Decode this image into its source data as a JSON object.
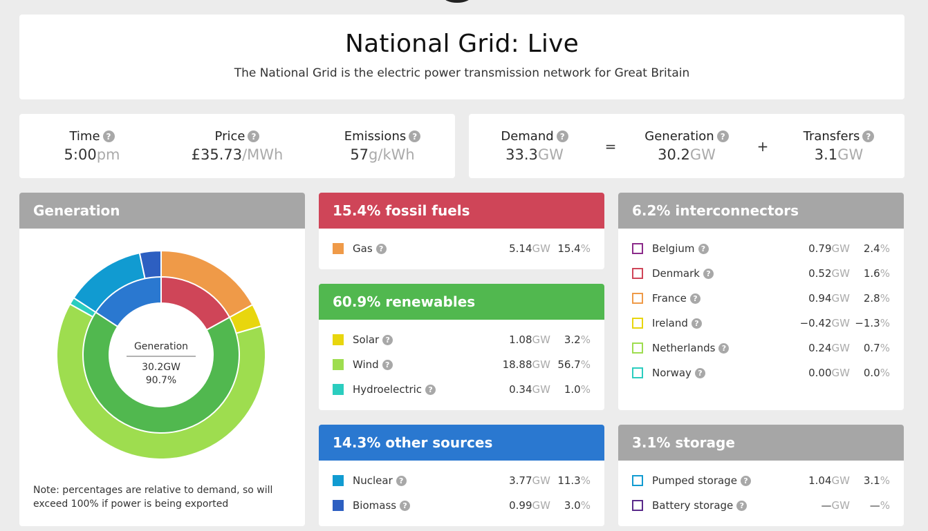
{
  "header": {
    "title": "National Grid: Live",
    "subtitle": "The National Grid is the electric power transmission network for Great Britain"
  },
  "stats": {
    "time": {
      "label": "Time",
      "value": "5:00",
      "unit": "pm"
    },
    "price": {
      "label": "Price",
      "value": "£35.73",
      "unit": "/MWh"
    },
    "emissions": {
      "label": "Emissions",
      "value": "57",
      "unit": "g/kWh"
    },
    "demand": {
      "label": "Demand",
      "value": "33.3",
      "unit": "GW"
    },
    "equals": "=",
    "generation": {
      "label": "Generation",
      "value": "30.2",
      "unit": "GW"
    },
    "plus": "+",
    "transfers": {
      "label": "Transfers",
      "value": "3.1",
      "unit": "GW"
    }
  },
  "help_glyph": "?",
  "gw_unit": "GW",
  "pct_unit": "%",
  "generation_panel": {
    "title": "Generation",
    "center_label": "Generation",
    "center_value": "30.2GW",
    "center_pct": "90.7%",
    "note": "Note: percentages are relative to demand, so will exceed 100% if power is being exported",
    "inner_ring": [
      {
        "name": "fossil fuels",
        "value": 15.4,
        "color": "#cf4558"
      },
      {
        "name": "renewables",
        "value": 60.9,
        "color": "#51b84f"
      },
      {
        "name": "other sources",
        "value": 14.3,
        "color": "#2a78d0"
      }
    ],
    "outer_ring": [
      {
        "name": "Gas",
        "value": 15.4,
        "color": "#ef9a48"
      },
      {
        "name": "Solar",
        "value": 3.2,
        "color": "#e8d60e"
      },
      {
        "name": "Wind",
        "value": 56.7,
        "color": "#9edd4f"
      },
      {
        "name": "Hydroelectric",
        "value": 1.0,
        "color": "#2bcdbf"
      },
      {
        "name": "Nuclear",
        "value": 11.3,
        "color": "#119bd1"
      },
      {
        "name": "Biomass",
        "value": 3.0,
        "color": "#2d5fc1"
      }
    ]
  },
  "fossil": {
    "title": "15.4% fossil fuels",
    "color": "#cf4558",
    "rows": [
      {
        "name": "Gas",
        "gw": "5.14",
        "pct": "15.4",
        "color": "#ef9a48"
      }
    ]
  },
  "renewables": {
    "title": "60.9% renewables",
    "color": "#51b84f",
    "rows": [
      {
        "name": "Solar",
        "gw": "1.08",
        "pct": "3.2",
        "color": "#e8d60e"
      },
      {
        "name": "Wind",
        "gw": "18.88",
        "pct": "56.7",
        "color": "#9edd4f"
      },
      {
        "name": "Hydroelectric",
        "gw": "0.34",
        "pct": "1.0",
        "color": "#2bcdbf"
      }
    ]
  },
  "other": {
    "title": "14.3% other sources",
    "color": "#2a78d0",
    "rows": [
      {
        "name": "Nuclear",
        "gw": "3.77",
        "pct": "11.3",
        "color": "#119bd1"
      },
      {
        "name": "Biomass",
        "gw": "0.99",
        "pct": "3.0",
        "color": "#2d5fc1"
      }
    ]
  },
  "interconnectors": {
    "title": "6.2% interconnectors",
    "rows": [
      {
        "name": "Belgium",
        "gw": "0.79",
        "pct": "2.4",
        "color": "#8b2a8a"
      },
      {
        "name": "Denmark",
        "gw": "0.52",
        "pct": "1.6",
        "color": "#cf4558"
      },
      {
        "name": "France",
        "gw": "0.94",
        "pct": "2.8",
        "color": "#ef9a48"
      },
      {
        "name": "Ireland",
        "gw": "−0.42",
        "pct": "−1.3",
        "color": "#e8d60e"
      },
      {
        "name": "Netherlands",
        "gw": "0.24",
        "pct": "0.7",
        "color": "#9edd4f"
      },
      {
        "name": "Norway",
        "gw": "0.00",
        "pct": "0.0",
        "color": "#2bcdbf"
      }
    ]
  },
  "storage": {
    "title": "3.1% storage",
    "rows": [
      {
        "name": "Pumped storage",
        "gw": "1.04",
        "pct": "3.1",
        "color": "#119bd1"
      },
      {
        "name": "Battery storage",
        "gw": "—",
        "pct": "—",
        "color": "#5a2a8a"
      }
    ]
  }
}
